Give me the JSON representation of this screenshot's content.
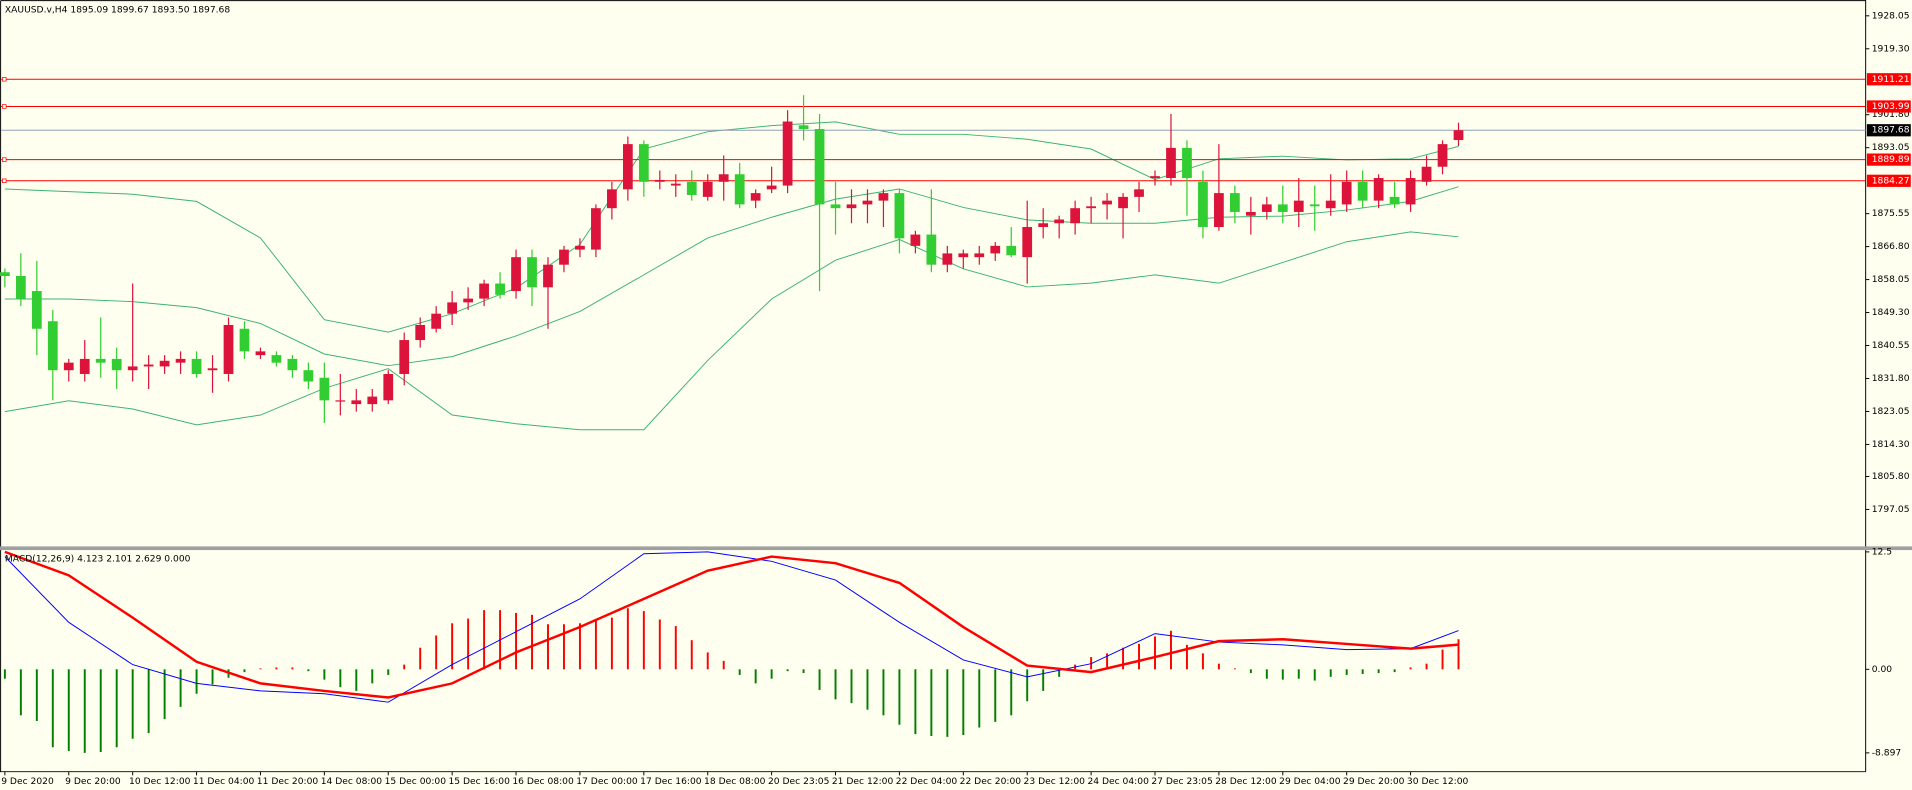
{
  "chart_data": [
    {
      "type": "candlestick",
      "title": "XAUUSD.v,H4 1895.09 1899.67 1893.50 1897.68",
      "categories": [
        "9 Dec 2020",
        null,
        null,
        null,
        "9 Dec 20:00",
        null,
        null,
        null,
        "10 Dec 12:00",
        null,
        null,
        null,
        "11 Dec 04:00",
        null,
        null,
        null,
        "11 Dec 20:00",
        null,
        null,
        null,
        "14 Dec 08:00",
        null,
        null,
        null,
        "15 Dec 00:00",
        null,
        null,
        null,
        "15 Dec 16:00",
        null,
        null,
        null,
        "16 Dec 08:00",
        null,
        null,
        null,
        "17 Dec 00:00",
        null,
        null,
        null,
        "17 Dec 16:00",
        null,
        null,
        null,
        "18 Dec 08:00",
        null,
        null,
        null,
        "20 Dec 23:05",
        null,
        null,
        null,
        "21 Dec 12:00",
        null,
        null,
        null,
        "22 Dec 04:00",
        null,
        null,
        null,
        "22 Dec 20:00",
        null,
        null,
        null,
        "23 Dec 12:00",
        null,
        null,
        null,
        "24 Dec 04:00",
        null,
        null,
        null,
        "27 Dec 23:05",
        null,
        null,
        null,
        "28 Dec 12:00",
        null,
        null,
        null,
        "29 Dec 04:00",
        null,
        null,
        null,
        "29 Dec 20:00",
        null,
        null,
        null,
        "30 Dec 12:00",
        null,
        null,
        null
      ],
      "open": [
        1860,
        1859,
        1855,
        1847,
        1834,
        1833,
        1837,
        1837,
        1834,
        1835,
        1835,
        1836,
        1837,
        1834,
        1833,
        1845,
        1838,
        1838,
        1837,
        1834,
        1832,
        1826,
        1825,
        1825,
        1826,
        1833,
        1842,
        1845,
        1849,
        1852,
        1853,
        1857,
        1855,
        1864,
        1856,
        1862,
        1866,
        1866,
        1877,
        1882,
        1894,
        1884,
        1883,
        1884,
        1880,
        1884,
        1886,
        1879,
        1882,
        1883,
        1899,
        1898,
        1878,
        1877,
        1878,
        1879,
        1881,
        1867,
        1870,
        1862,
        1864,
        1864,
        1865,
        1867,
        1864,
        1872,
        1873,
        1873,
        1877,
        1878,
        1877,
        1880,
        1885,
        1885,
        1893,
        1884,
        1872,
        1881,
        1875,
        1876,
        1878,
        1876,
        1878,
        1877,
        1878,
        1884,
        1879,
        1880,
        1878,
        1884,
        1888,
        1895.09
      ],
      "high": [
        1861,
        1865,
        1863,
        1850,
        1837,
        1842,
        1848,
        1840,
        1857,
        1838,
        1838,
        1839,
        1839,
        1838,
        1848,
        1847,
        1840,
        1839,
        1838,
        1836,
        1836,
        1833,
        1829,
        1829,
        1834,
        1844,
        1848,
        1851,
        1855,
        1856,
        1858,
        1860,
        1866,
        1866,
        1864,
        1867,
        1869,
        1878,
        1884,
        1896,
        1895,
        1887,
        1886,
        1887,
        1886,
        1891,
        1889,
        1882,
        1888,
        1903,
        1907,
        1902,
        1884,
        1882,
        1882,
        1882,
        1882,
        1871,
        1882,
        1867,
        1866,
        1867,
        1868,
        1872,
        1879,
        1877,
        1875,
        1879,
        1880,
        1881,
        1881,
        1884,
        1887,
        1902,
        1895,
        1887,
        1894,
        1883,
        1880,
        1880,
        1883,
        1885,
        1883,
        1886,
        1887,
        1887,
        1886,
        1884,
        1887,
        1891,
        1895,
        1899.67
      ],
      "low": [
        1856,
        1851,
        1838,
        1826,
        1831,
        1831,
        1832,
        1829,
        1831,
        1829,
        1833,
        1833,
        1832,
        1828,
        1831,
        1837,
        1837,
        1835,
        1832,
        1829,
        1820,
        1822,
        1823,
        1823,
        1825,
        1830,
        1840,
        1844,
        1846,
        1850,
        1851,
        1853,
        1853,
        1851,
        1845,
        1860,
        1864,
        1864,
        1874,
        1879,
        1880,
        1882,
        1880,
        1879,
        1879,
        1879,
        1877,
        1877,
        1881,
        1881,
        1895,
        1855,
        1870,
        1873,
        1873,
        1872,
        1865,
        1865,
        1860,
        1860,
        1861,
        1862,
        1863,
        1864,
        1857,
        1869,
        1869,
        1870,
        1873,
        1874,
        1869,
        1876,
        1883,
        1883,
        1875,
        1869,
        1871,
        1873,
        1870,
        1874,
        1873,
        1872,
        1871,
        1875,
        1876,
        1877,
        1877,
        1877,
        1876,
        1883,
        1886,
        1893.5
      ],
      "close": [
        1859,
        1853,
        1845,
        1834,
        1836,
        1837,
        1836,
        1834,
        1835,
        1835.5,
        1836.5,
        1837,
        1833,
        1834.5,
        1846,
        1839,
        1839,
        1836,
        1834,
        1831,
        1826,
        1826,
        1826,
        1827,
        1833,
        1842,
        1846,
        1849,
        1852,
        1853,
        1857,
        1854,
        1864,
        1856,
        1862,
        1866,
        1867,
        1877,
        1882,
        1894,
        1884,
        1884.5,
        1883.5,
        1880.5,
        1884,
        1886,
        1878,
        1881,
        1883,
        1900,
        1898,
        1878,
        1877,
        1878,
        1879,
        1881,
        1869,
        1870,
        1862,
        1865,
        1865,
        1865,
        1867,
        1864.5,
        1872,
        1873,
        1874,
        1877,
        1877.5,
        1879,
        1880,
        1882,
        1885.5,
        1893,
        1885,
        1872,
        1881,
        1876,
        1876,
        1878,
        1876,
        1879,
        1877.5,
        1879,
        1884,
        1879,
        1885,
        1878,
        1885,
        1888,
        1894,
        1897.68
      ],
      "up_color": "#dc143c",
      "down_color": "#32cd32",
      "series": [
        {
          "color": "#3cb371",
          "x": [
            0,
            4,
            8,
            12,
            16,
            20,
            24,
            28,
            32,
            36,
            40,
            44,
            48,
            52,
            56,
            60,
            64,
            68,
            72,
            76,
            80,
            84,
            88,
            91
          ],
          "values": [
            1882.1,
            1881.4,
            1880.7,
            1878.8,
            1869.1,
            1847.4,
            1844.1,
            1849.0,
            1855.8,
            1867.4,
            1892.7,
            1897.3,
            1898.9,
            1899.9,
            1896.6,
            1896.6,
            1895.3,
            1892.7,
            1884.6,
            1890.1,
            1890.8,
            1889.8,
            1890.1,
            1893.4
          ]
        },
        {
          "color": "#3cb371",
          "x": [
            0,
            4,
            8,
            12,
            16,
            20,
            24,
            28,
            32,
            36,
            40,
            44,
            48,
            52,
            56,
            60,
            64,
            68,
            72,
            76,
            80,
            84,
            88,
            91
          ],
          "values": [
            1852.9,
            1852.9,
            1852.2,
            1850.6,
            1846.4,
            1838.3,
            1835.2,
            1837.6,
            1843.1,
            1849.6,
            1859.3,
            1869.1,
            1874.6,
            1879.4,
            1882.1,
            1877.2,
            1873.9,
            1873.0,
            1873.0,
            1874.6,
            1874.9,
            1876.5,
            1878.8,
            1882.7
          ]
        },
        {
          "color": "#3cb371",
          "x": [
            0,
            4,
            8,
            12,
            16,
            20,
            24,
            28,
            32,
            36,
            40,
            44,
            48,
            52,
            56,
            60,
            64,
            68,
            72,
            76,
            80,
            84,
            88,
            91
          ],
          "values": [
            1823.0,
            1825.9,
            1823.7,
            1819.5,
            1822.1,
            1829.2,
            1834.4,
            1822.1,
            1819.8,
            1818.2,
            1818.2,
            1836.6,
            1852.9,
            1863.2,
            1868.7,
            1860.9,
            1856.1,
            1857.1,
            1859.3,
            1857.1,
            1862.6,
            1868.1,
            1870.7,
            1869.4
          ]
        }
      ],
      "levels": [
        {
          "value": 1911.21,
          "color": "#ff0000"
        },
        {
          "value": 1903.99,
          "color": "#ff0000"
        },
        {
          "value": 1889.89,
          "color": "#ff0000"
        },
        {
          "value": 1884.27,
          "color": "#ff0000"
        }
      ],
      "bid_line_color": "#8fa0b8",
      "ylim": [
        1787.4,
        1931.6
      ],
      "yticks": [
        1928.05,
        {
          "value": 1919.3,
          "label": "1919.30"
        },
        {
          "value": 1901.8,
          "label": "1901.80"
        },
        1893.05,
        1875.55,
        {
          "value": 1866.8,
          "label": "1866.80"
        },
        1858.05,
        {
          "value": 1849.3,
          "label": "1849.30"
        },
        1840.55,
        {
          "value": 1831.8,
          "label": "1831.80"
        },
        1823.05,
        {
          "value": 1814.3,
          "label": "1814.30"
        },
        {
          "value": 1805.8,
          "label": "1805.80"
        },
        1797.05
      ]
    },
    {
      "type": "bar",
      "title": "MACD(12,26,9) 4.123 2.101 2.629 0.000",
      "values": [
        -1.0,
        -4.9,
        -5.5,
        -8.3,
        -8.7,
        -8.897,
        -8.8,
        -8.3,
        -7.4,
        -6.8,
        -5.3,
        -4.0,
        -2.6,
        -1.6,
        -0.9,
        -0.3,
        0.1,
        0.2,
        0.2,
        -0.2,
        -1.1,
        -1.9,
        -2.3,
        -1.5,
        -0.6,
        0.5,
        2.3,
        3.6,
        4.9,
        5.4,
        6.3,
        6.3,
        6.0,
        5.8,
        4.8,
        4.8,
        4.9,
        5.3,
        5.5,
        6.5,
        6.2,
        5.3,
        4.6,
        3.1,
        1.8,
        0.9,
        -0.6,
        -1.5,
        -1.0,
        -0.2,
        -0.4,
        -2.2,
        -3.2,
        -3.6,
        -4.3,
        -4.9,
        -5.9,
        -6.9,
        -7.1,
        -7.2,
        -7.0,
        -6.2,
        -5.6,
        -4.9,
        -3.4,
        -2.3,
        -0.8,
        0.5,
        1.3,
        1.7,
        2.3,
        2.7,
        3.5,
        4.1,
        2.6,
        1.7,
        0.6,
        0.1,
        -0.4,
        -1.0,
        -1.1,
        -1.0,
        -1.2,
        -0.8,
        -0.6,
        -0.5,
        -0.4,
        -0.3,
        0.2,
        0.6,
        2.1,
        3.2
      ],
      "positive_color": "#ff0000",
      "negative_color": "#008000",
      "series": [
        {
          "color": "#0000ff",
          "width": 0.8,
          "x": [
            0,
            4,
            8,
            12,
            16,
            20,
            24,
            28,
            32,
            36,
            40,
            44,
            48,
            52,
            56,
            60,
            64,
            68,
            72,
            76,
            80,
            84,
            88,
            91
          ],
          "values": [
            12.0,
            5.0,
            0.5,
            -1.5,
            -2.3,
            -2.6,
            -3.5,
            0.5,
            4.0,
            7.5,
            12.3,
            12.5,
            11.5,
            9.5,
            5.0,
            1.0,
            -0.8,
            0.6,
            3.8,
            2.9,
            2.6,
            2.1,
            2.2,
            4.123
          ]
        },
        {
          "color": "#ff0000",
          "width": 2,
          "x": [
            0,
            4,
            8,
            12,
            16,
            20,
            24,
            28,
            32,
            36,
            40,
            44,
            48,
            52,
            56,
            60,
            64,
            68,
            72,
            76,
            80,
            84,
            88,
            91
          ],
          "values": [
            12.5,
            10.0,
            5.5,
            0.8,
            -1.5,
            -2.3,
            -3.0,
            -1.5,
            1.8,
            4.5,
            7.5,
            10.5,
            12.0,
            11.3,
            9.2,
            4.5,
            0.4,
            -0.3,
            1.3,
            3.0,
            3.2,
            2.7,
            2.2,
            2.629
          ]
        }
      ],
      "ylim": [
        -10.9,
        12.5
      ],
      "yticks": [
        12.5,
        {
          "value": 0,
          "label": "0.00"
        },
        -8.897
      ]
    }
  ]
}
